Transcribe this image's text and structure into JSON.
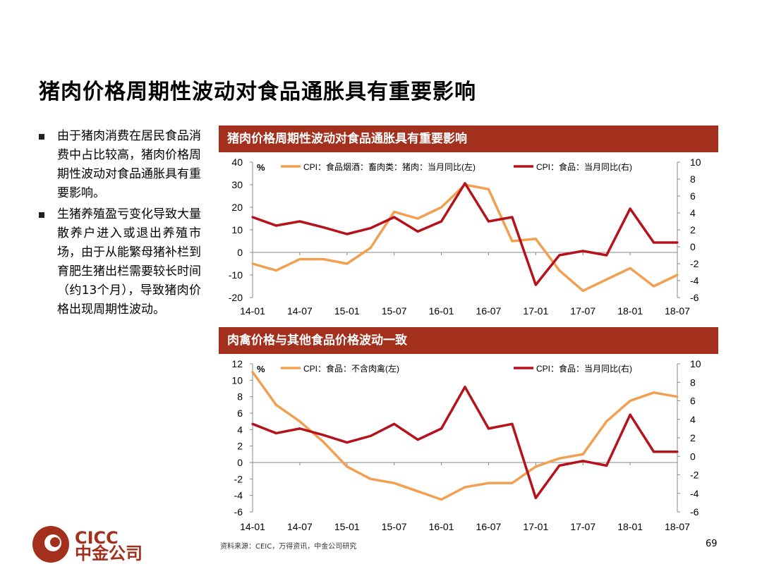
{
  "page": {
    "title": "猪肉价格周期性波动对食品通胀具有重要影响",
    "bullets": [
      "由于猪肉消费在居民食品消费中占比较高，猪肉价格周期性波动对食品通胀具有重要影响。",
      "生猪养殖盈亏变化导致大量散养户进入或退出养殖市场，由于从能繁母猪补栏到育肥生猪出栏需要较长时间（约13个月），导致猪肉价格出现周期性波动。"
    ],
    "source": "资料来源：CEIC，万得资讯，中金公司研究",
    "page_number": "69",
    "logo": {
      "text_top": "CICC",
      "text_bottom": "中金公司"
    },
    "colors": {
      "header_bg": "#a2301c",
      "series_orange": "#f0a050",
      "series_red": "#b5121b"
    }
  },
  "chart_data": [
    {
      "type": "line",
      "header": "猪肉价格周期性波动对食品通胀具有重要影响",
      "unit_label": "%",
      "x": [
        "14-01",
        "14-04",
        "14-07",
        "14-10",
        "15-01",
        "15-04",
        "15-07",
        "15-10",
        "16-01",
        "16-04",
        "16-07",
        "16-10",
        "17-01",
        "17-04",
        "17-07",
        "17-10",
        "18-01",
        "18-04",
        "18-07"
      ],
      "x_tick_labels": [
        "14-01",
        "14-07",
        "15-01",
        "15-07",
        "16-01",
        "16-07",
        "17-01",
        "17-07",
        "18-01",
        "18-07"
      ],
      "left_axis": {
        "ylim": [
          -20,
          40
        ],
        "ticks": [
          "40",
          "30",
          "20",
          "10",
          "0",
          "-10",
          "-20"
        ]
      },
      "right_axis": {
        "ylim": [
          -6,
          10
        ],
        "ticks": [
          "10",
          "8",
          "6",
          "4",
          "2",
          "0",
          "-2",
          "-4",
          "-6"
        ]
      },
      "series": [
        {
          "name": "CPI：食品烟酒：畜肉类：猪肉：当月同比(左)",
          "axis": "left",
          "color": "#f0a050",
          "values": [
            -5,
            -8,
            -3,
            -3,
            -5,
            2,
            18,
            15,
            20,
            30,
            28,
            5,
            6,
            -8,
            -17,
            -12,
            -7,
            -15,
            -10
          ]
        },
        {
          "name": "CPI：食品：当月同比(右)",
          "axis": "right",
          "color": "#b5121b",
          "values": [
            3.5,
            2.5,
            3,
            2.3,
            1.5,
            2.2,
            3.5,
            1.8,
            3,
            7.5,
            3,
            3.5,
            -4.5,
            -1,
            -0.5,
            -1,
            4.5,
            0.5,
            0.5
          ]
        }
      ]
    },
    {
      "type": "line",
      "header": "肉禽价格与其他食品价格波动一致",
      "unit_label": "%",
      "x": [
        "14-01",
        "14-04",
        "14-07",
        "14-10",
        "15-01",
        "15-04",
        "15-07",
        "15-10",
        "16-01",
        "16-04",
        "16-07",
        "16-10",
        "17-01",
        "17-04",
        "17-07",
        "17-10",
        "18-01",
        "18-04",
        "18-07"
      ],
      "x_tick_labels": [
        "14-01",
        "14-07",
        "15-01",
        "15-07",
        "16-01",
        "16-07",
        "17-01",
        "17-07",
        "18-01",
        "18-07"
      ],
      "left_axis": {
        "ylim": [
          -6,
          12
        ],
        "ticks": [
          "12",
          "10",
          "8",
          "6",
          "4",
          "2",
          "0",
          "-2",
          "-4",
          "-6"
        ]
      },
      "right_axis": {
        "ylim": [
          -6,
          10
        ],
        "ticks": [
          "10",
          "8",
          "6",
          "4",
          "2",
          "0",
          "-2",
          "-4",
          "-6"
        ]
      },
      "series": [
        {
          "name": "CPI：食品：不含肉禽(左)",
          "axis": "left",
          "color": "#f0a050",
          "values": [
            11,
            7,
            5,
            2.5,
            -0.5,
            -2,
            -2.5,
            -3.5,
            -4.5,
            -3,
            -2.5,
            -2.5,
            -0.5,
            0.5,
            1,
            5,
            7.5,
            8.5,
            8
          ]
        },
        {
          "name": "CPI：食品：当月同比(右)",
          "axis": "right",
          "color": "#b5121b",
          "values": [
            3.5,
            2.5,
            3,
            2.3,
            1.5,
            2.2,
            3.5,
            1.8,
            3,
            7.5,
            3,
            3.5,
            -4.5,
            -1,
            -0.5,
            -1,
            4.5,
            0.5,
            0.5
          ]
        }
      ]
    }
  ]
}
